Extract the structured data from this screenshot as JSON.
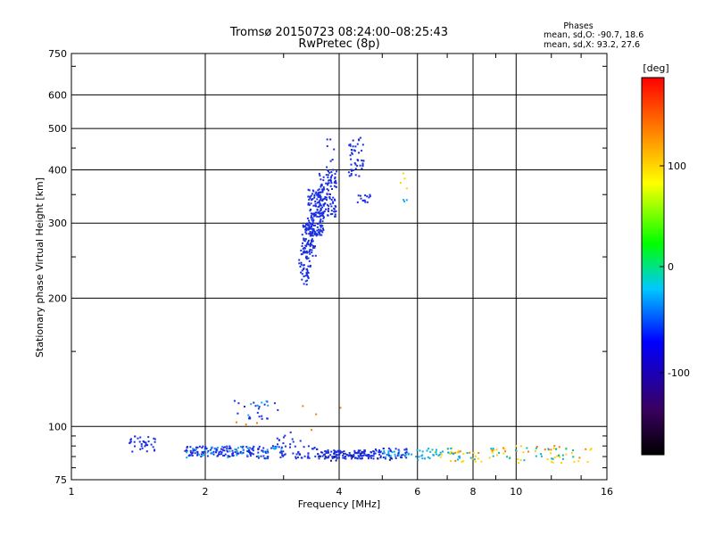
{
  "chart_data": {
    "type": "scatter",
    "title": "Tromsø 20150723 08:24:00–08:25:43",
    "subtitle": "RwPretec (8p)",
    "xlabel": "Frequency [MHz]",
    "ylabel": "Stationary phase Virtual Height [km]",
    "x_scale": "log",
    "y_scale": "log",
    "xlim": [
      1,
      16
    ],
    "ylim": [
      75,
      750
    ],
    "x_ticks": [
      1,
      2,
      4,
      6,
      8,
      10,
      16
    ],
    "y_ticks": [
      75,
      100,
      200,
      300,
      400,
      500,
      600,
      750
    ],
    "grid": true,
    "stats": {
      "title": "Phases",
      "line_o": "mean, sd,O: -90.7, 18.6",
      "line_x": "mean, sd,X:  93.2, 27.6"
    },
    "colorbar": {
      "label": "[deg]",
      "ticks": [
        "100",
        "0",
        "-100"
      ],
      "range": [
        -180,
        180
      ],
      "colors": [
        "#000000",
        "#3a0060",
        "#0000ff",
        "#00c8ff",
        "#00ff00",
        "#ffff00",
        "#ff8000",
        "#ff0000"
      ]
    },
    "series": [
      {
        "color": "#1a2fe0",
        "clusters": [
          {
            "f": [
              3.25,
              3.45
            ],
            "h": [
              215,
              265
            ],
            "n": 50
          },
          {
            "f": [
              3.3,
              3.55
            ],
            "h": [
              250,
              300
            ],
            "n": 80
          },
          {
            "f": [
              3.4,
              3.7
            ],
            "h": [
              280,
              360
            ],
            "n": 150
          },
          {
            "f": [
              3.6,
              3.95
            ],
            "h": [
              310,
              400
            ],
            "n": 110
          },
          {
            "f": [
              3.75,
              3.92
            ],
            "h": [
              400,
              500
            ],
            "n": 8
          },
          {
            "f": [
              4.2,
              4.55
            ],
            "h": [
              385,
              480
            ],
            "n": 45
          },
          {
            "f": [
              4.4,
              4.7
            ],
            "h": [
              335,
              350
            ],
            "n": 14
          },
          {
            "f": [
              1.35,
              1.55
            ],
            "h": [
              87,
              95
            ],
            "n": 35
          },
          {
            "f": [
              1.8,
              2.6
            ],
            "h": [
              85,
              90
            ],
            "n": 120
          },
          {
            "f": [
              2.6,
              3.6
            ],
            "h": [
              84,
              90
            ],
            "n": 70
          },
          {
            "f": [
              3.6,
              4.8
            ],
            "h": [
              84,
              88
            ],
            "n": 130
          },
          {
            "f": [
              4.8,
              5.7
            ],
            "h": [
              84,
              89
            ],
            "n": 45
          },
          {
            "f": [
              2.3,
              2.95
            ],
            "h": [
              104,
              115
            ],
            "n": 22
          },
          {
            "f": [
              2.9,
              3.35
            ],
            "h": [
              88,
              98
            ],
            "n": 14
          }
        ]
      },
      {
        "color": "#12a8ef",
        "clusters": [
          {
            "f": [
              1.8,
              3.0
            ],
            "h": [
              84,
              90
            ],
            "n": 40
          },
          {
            "f": [
              5.0,
              7.5
            ],
            "h": [
              84,
              88
            ],
            "n": 45
          },
          {
            "f": [
              2.5,
              2.8
            ],
            "h": [
              105,
              115
            ],
            "n": 6
          },
          {
            "f": [
              5.5,
              5.7
            ],
            "h": [
              330,
              345
            ],
            "n": 3
          }
        ]
      },
      {
        "color": "#ffd400",
        "clusters": [
          {
            "f": [
              6.5,
              15.0
            ],
            "h": [
              82,
              90
            ],
            "n": 55
          },
          {
            "f": [
              5.5,
              5.8
            ],
            "h": [
              355,
              395
            ],
            "n": 4
          }
        ]
      },
      {
        "color": "#ff7a00",
        "clusters": [
          {
            "f": [
              7.0,
              14.5
            ],
            "h": [
              83,
              90
            ],
            "n": 18
          },
          {
            "f": [
              2.2,
              4.9
            ],
            "h": [
              98,
              112
            ],
            "n": 7
          }
        ]
      },
      {
        "color": "#00b8c8",
        "clusters": [
          {
            "f": [
              6.0,
              14.0
            ],
            "h": [
              83,
              89
            ],
            "n": 40
          }
        ]
      },
      {
        "color": "#1e1e6e",
        "clusters": [
          {
            "f": [
              3.2,
              5.5
            ],
            "h": [
              83,
              87
            ],
            "n": 12
          }
        ]
      }
    ]
  }
}
